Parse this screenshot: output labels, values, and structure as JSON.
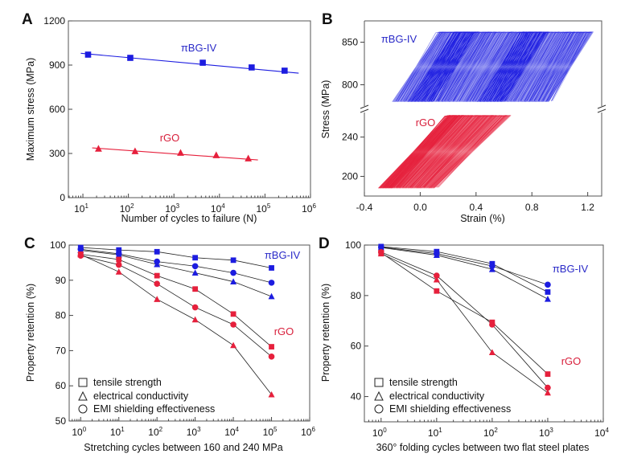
{
  "colors": {
    "pibg": "#1c1ce0",
    "rgo": "#e6203c",
    "pibg_label": "#2a2ac8",
    "rgo_label": "#d8203c",
    "pibg_fill_light": "#8b8cf0",
    "rgo_fill_light": "#f29aa6"
  },
  "chart_data": [
    {
      "panel": "A",
      "type": "scatter",
      "title": "",
      "xlabel": "Number of cycles to failure (N)",
      "ylabel": "Maximum stress (MPa)",
      "xscale": "log",
      "xlim": [
        4.8,
        1000000
      ],
      "ylim": [
        0,
        1200
      ],
      "xticks": [
        10,
        100,
        1000,
        10000,
        100000,
        1000000
      ],
      "xtick_labels": [
        {
          "base": "10",
          "exp": "1"
        },
        {
          "base": "10",
          "exp": "2"
        },
        {
          "base": "10",
          "exp": "3"
        },
        {
          "base": "10",
          "exp": "4"
        },
        {
          "base": "10",
          "exp": "5"
        },
        {
          "base": "10",
          "exp": "6"
        }
      ],
      "yticks": [
        0,
        300,
        600,
        900,
        1200
      ],
      "ytick_labels": [
        "0",
        "300",
        "600",
        "900",
        "1200"
      ],
      "series": [
        {
          "name": "πBG-IV",
          "marker": "square",
          "color_key": "pibg",
          "x": [
            13,
            110,
            4300,
            51000,
            270000
          ],
          "y": [
            971,
            949,
            916,
            884,
            862
          ],
          "fit": {
            "x": [
              9,
              550000
            ],
            "y": [
              980,
              845
            ]
          }
        },
        {
          "name": "rGO",
          "marker": "triangle",
          "color_key": "rgo",
          "x": [
            22,
            140,
            1400,
            8500,
            43000
          ],
          "y": [
            333,
            316,
            305,
            289,
            267
          ],
          "fit": {
            "x": [
              16,
              70000
            ],
            "y": [
              338,
              256
            ]
          }
        }
      ],
      "annotations": [
        {
          "text": "πBG-IV",
          "color_key": "pibg_label"
        },
        {
          "text": "rGO",
          "color_key": "rgo_label"
        }
      ]
    },
    {
      "panel": "B",
      "type": "area",
      "title": "",
      "xlabel": "Strain (%)",
      "ylabel": "Stress (MPa)",
      "xlim": [
        -0.4,
        1.3
      ],
      "ylim_upper": [
        775,
        875
      ],
      "ylim_lower": [
        180,
        265
      ],
      "axis_break": true,
      "xticks": [
        -0.4,
        0.0,
        0.4,
        0.8,
        1.2
      ],
      "xtick_labels": [
        "-0.4",
        "0.0",
        "0.4",
        "0.8",
        "1.2"
      ],
      "yticks_upper": [
        800,
        850
      ],
      "yticks_lower": [
        200,
        240
      ],
      "ytick_labels_upper": [
        "800",
        "850"
      ],
      "ytick_labels_lower": [
        "200",
        "240"
      ],
      "series": [
        {
          "name": "πBG-IV",
          "description": "cyclic stress-strain hysteresis loops, ratcheting to the right",
          "color_key": "pibg",
          "stress_range": [
            780,
            862
          ],
          "strain_at_min_stress": [
            -0.2,
            0.92
          ],
          "strain_at_max_stress": [
            0.14,
            1.24
          ],
          "dense_bands_strain_at_min_stress": [
            0.0,
            0.5
          ]
        },
        {
          "name": "rGO",
          "description": "cyclic stress-strain hysteresis loops",
          "color_key": "rgo",
          "stress_range": [
            188,
            262
          ],
          "strain_at_min_stress": [
            -0.3,
            0.1
          ],
          "strain_at_max_stress": [
            0.2,
            0.65
          ]
        }
      ],
      "annotations": [
        {
          "text": "πBG-IV",
          "color_key": "pibg_label"
        },
        {
          "text": "rGO",
          "color_key": "rgo_label"
        }
      ]
    },
    {
      "panel": "C",
      "type": "line",
      "title": "",
      "xlabel": "Stretching cycles between 160 and 240 MPa",
      "ylabel": "Property retention (%)",
      "xscale": "log",
      "xlim": [
        0.5,
        1000000
      ],
      "ylim": [
        50,
        100
      ],
      "xticks": [
        1,
        10,
        100,
        1000,
        10000,
        100000,
        1000000
      ],
      "xtick_labels": [
        {
          "base": "10",
          "exp": "0"
        },
        {
          "base": "10",
          "exp": "1"
        },
        {
          "base": "10",
          "exp": "2"
        },
        {
          "base": "10",
          "exp": "3"
        },
        {
          "base": "10",
          "exp": "4"
        },
        {
          "base": "10",
          "exp": "5"
        },
        {
          "base": "10",
          "exp": "6"
        }
      ],
      "yticks": [
        50,
        60,
        70,
        80,
        90,
        100
      ],
      "ytick_labels": [
        "50",
        "60",
        "70",
        "80",
        "90",
        "100"
      ],
      "x": [
        1,
        10,
        100,
        1000,
        10000,
        100000
      ],
      "series": [
        {
          "name": "πBG-IV tensile strength",
          "marker": "square",
          "color_key": "pibg",
          "values": [
            99.3,
            98.6,
            98.1,
            96.4,
            95.7,
            93.5
          ]
        },
        {
          "name": "πBG-IV EMI shielding effectiveness",
          "marker": "circle",
          "color_key": "pibg",
          "values": [
            98.8,
            97.5,
            95.3,
            94.0,
            92.1,
            89.3
          ]
        },
        {
          "name": "πBG-IV electrical conductivity",
          "marker": "triangle",
          "color_key": "pibg",
          "values": [
            98.5,
            97.2,
            94.5,
            92.1,
            89.6,
            85.4
          ]
        },
        {
          "name": "rGO tensile strength",
          "marker": "square",
          "color_key": "rgo",
          "values": [
            97.4,
            95.9,
            91.3,
            87.5,
            80.4,
            71.1
          ]
        },
        {
          "name": "rGO EMI shielding effectiveness",
          "marker": "circle",
          "color_key": "rgo",
          "values": [
            97.0,
            94.4,
            89.0,
            82.3,
            77.4,
            68.3
          ]
        },
        {
          "name": "rGO electrical conductivity",
          "marker": "triangle",
          "color_key": "rgo",
          "values": [
            97.3,
            92.4,
            84.6,
            78.8,
            71.5,
            57.5
          ]
        }
      ],
      "legend": {
        "placement": "bottom-left",
        "entries": [
          {
            "marker": "square",
            "label": "tensile strength"
          },
          {
            "marker": "triangle",
            "label": "electrical conductivity"
          },
          {
            "marker": "circle",
            "label": "EMI shielding effectiveness"
          }
        ]
      },
      "annotations": [
        {
          "text": "πBG-IV",
          "color_key": "pibg_label"
        },
        {
          "text": "rGO",
          "color_key": "rgo_label"
        }
      ]
    },
    {
      "panel": "D",
      "type": "line",
      "title": "",
      "xlabel": "360° folding cycles between two flat steel plates",
      "ylabel": "Property retention (%)",
      "xscale": "log",
      "xlim": [
        0.5,
        10000
      ],
      "ylim": [
        30,
        100
      ],
      "xticks": [
        1,
        10,
        100,
        1000,
        10000
      ],
      "xtick_labels": [
        {
          "base": "10",
          "exp": "0"
        },
        {
          "base": "10",
          "exp": "1"
        },
        {
          "base": "10",
          "exp": "2"
        },
        {
          "base": "10",
          "exp": "3"
        },
        {
          "base": "10",
          "exp": "4"
        }
      ],
      "yticks": [
        40,
        60,
        80,
        100
      ],
      "ytick_labels": [
        "40",
        "60",
        "80",
        "100"
      ],
      "x": [
        1,
        10,
        100,
        1000
      ],
      "series": [
        {
          "name": "πBG-IV tensile strength",
          "marker": "square",
          "color_key": "pibg",
          "values": [
            99.4,
            97.4,
            92.6,
            81.4
          ]
        },
        {
          "name": "πBG-IV EMI shielding effectiveness",
          "marker": "circle",
          "color_key": "pibg",
          "values": [
            99.2,
            96.6,
            91.7,
            84.3
          ]
        },
        {
          "name": "πBG-IV electrical conductivity",
          "marker": "triangle",
          "color_key": "pibg",
          "values": [
            99.0,
            96.0,
            90.4,
            78.6
          ]
        },
        {
          "name": "rGO tensile strength",
          "marker": "square",
          "color_key": "rgo",
          "values": [
            97.0,
            81.8,
            69.4,
            48.9
          ]
        },
        {
          "name": "rGO EMI shielding effectiveness",
          "marker": "circle",
          "color_key": "rgo",
          "values": [
            97.2,
            87.9,
            68.5,
            43.5
          ]
        },
        {
          "name": "rGO electrical conductivity",
          "marker": "triangle",
          "color_key": "rgo",
          "values": [
            96.6,
            86.3,
            57.5,
            41.5
          ]
        }
      ],
      "legend": {
        "placement": "bottom-left",
        "entries": [
          {
            "marker": "square",
            "label": "tensile strength"
          },
          {
            "marker": "triangle",
            "label": "electrical conductivity"
          },
          {
            "marker": "circle",
            "label": "EMI shielding effectiveness"
          }
        ]
      },
      "annotations": [
        {
          "text": "πBG-IV",
          "color_key": "pibg_label"
        },
        {
          "text": "rGO",
          "color_key": "rgo_label"
        }
      ]
    }
  ]
}
